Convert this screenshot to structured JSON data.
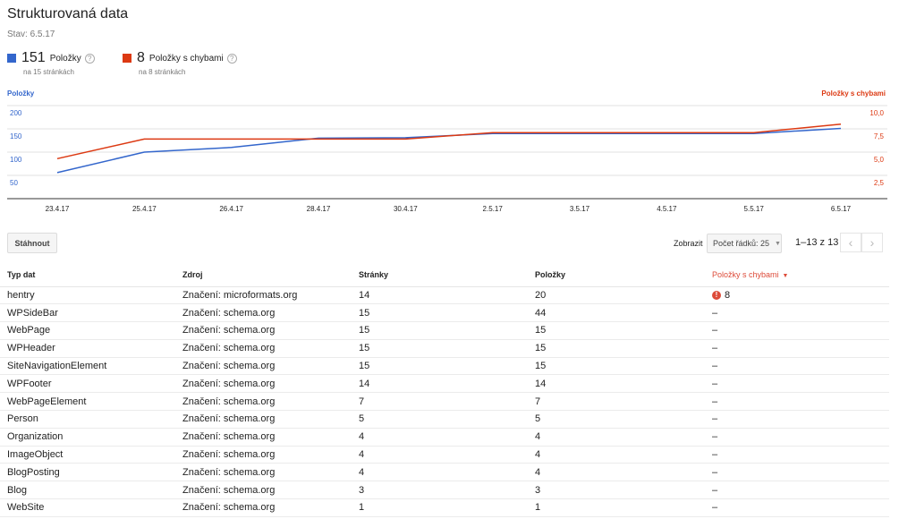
{
  "header": {
    "title": "Strukturovaná data",
    "status": "Stav: 6.5.17"
  },
  "summary": [
    {
      "count": "151",
      "label": "Položky",
      "sub": "na 15 stránkách",
      "color": "#3366cc"
    },
    {
      "count": "8",
      "label": "Položky s chybami",
      "sub": "na 8 stránkách",
      "color": "#dc3912"
    }
  ],
  "chart_data": {
    "type": "line",
    "x": [
      "23.4.17",
      "25.4.17",
      "26.4.17",
      "28.4.17",
      "30.4.17",
      "2.5.17",
      "3.5.17",
      "4.5.17",
      "5.5.17",
      "6.5.17"
    ],
    "left_axis": {
      "label": "Položky",
      "ticks": [
        "200",
        "150",
        "100",
        "50"
      ],
      "range": [
        0,
        200
      ]
    },
    "right_axis": {
      "label": "Položky s chybami",
      "ticks": [
        "10,0",
        "7,5",
        "5,0",
        "2,5"
      ],
      "range": [
        0,
        10
      ]
    },
    "series": [
      {
        "name": "Položky",
        "axis": "left",
        "color": "#3366cc",
        "values": [
          56,
          100,
          110,
          130,
          131,
          140,
          140,
          140,
          140,
          151
        ]
      },
      {
        "name": "Položky s chybami",
        "axis": "right",
        "color": "#dc3912",
        "values": [
          4.3,
          6.4,
          6.4,
          6.4,
          6.4,
          7.1,
          7.1,
          7.1,
          7.1,
          8.0
        ]
      }
    ],
    "grid": true
  },
  "toolbar": {
    "download_label": "Stáhnout",
    "show_label": "Zobrazit",
    "rows_select": "Počet řádků: 25",
    "pager_text": "1–13 z 13",
    "prev": "‹",
    "next": "›"
  },
  "table": {
    "headers": [
      "Typ dat",
      "Zdroj",
      "Stránky",
      "Položky",
      "Položky s chybami"
    ],
    "sort_indicator": "▼",
    "error_icon": "!",
    "rows": [
      [
        "hentry",
        "Značení: microformats.org",
        "14",
        "20",
        "8"
      ],
      [
        "WPSideBar",
        "Značení: schema.org",
        "15",
        "44",
        "–"
      ],
      [
        "WebPage",
        "Značení: schema.org",
        "15",
        "15",
        "–"
      ],
      [
        "WPHeader",
        "Značení: schema.org",
        "15",
        "15",
        "–"
      ],
      [
        "SiteNavigationElement",
        "Značení: schema.org",
        "15",
        "15",
        "–"
      ],
      [
        "WPFooter",
        "Značení: schema.org",
        "14",
        "14",
        "–"
      ],
      [
        "WebPageElement",
        "Značení: schema.org",
        "7",
        "7",
        "–"
      ],
      [
        "Person",
        "Značení: schema.org",
        "5",
        "5",
        "–"
      ],
      [
        "Organization",
        "Značení: schema.org",
        "4",
        "4",
        "–"
      ],
      [
        "ImageObject",
        "Značení: schema.org",
        "4",
        "4",
        "–"
      ],
      [
        "BlogPosting",
        "Značení: schema.org",
        "4",
        "4",
        "–"
      ],
      [
        "Blog",
        "Značení: schema.org",
        "3",
        "3",
        "–"
      ],
      [
        "WebSite",
        "Značení: schema.org",
        "1",
        "1",
        "–"
      ]
    ]
  }
}
